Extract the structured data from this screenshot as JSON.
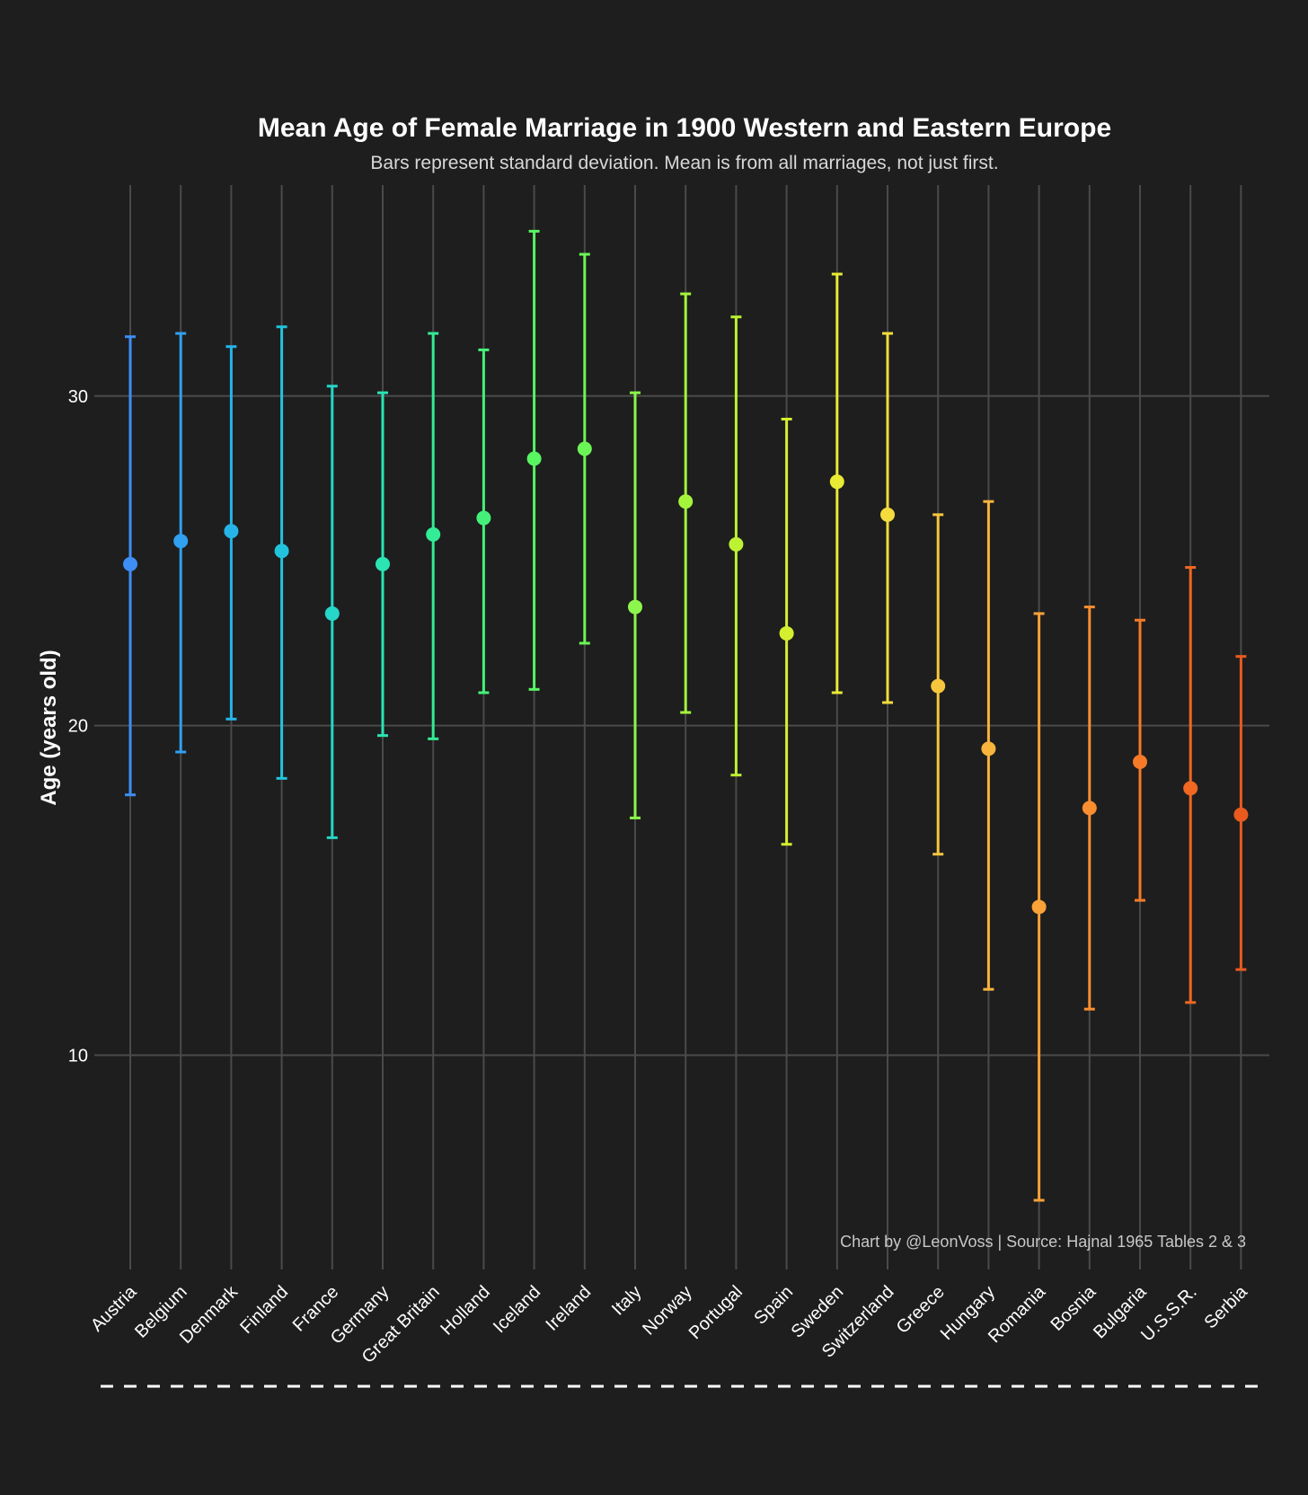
{
  "chart_data": {
    "type": "errorbar",
    "title": "Mean Age of Female Marriage in 1900 Western and Eastern Europe",
    "subtitle": "Bars represent standard deviation. Mean is from all marriages, not just first.",
    "xlabel": "",
    "ylabel": "Age (years old)",
    "ylim": [
      3.5,
      36.4
    ],
    "yticks": [
      "10",
      "20",
      "30"
    ],
    "grid": true,
    "caption": "Chart by @LeonVoss | Source: Hajnal 1965 Tables 2 & 3",
    "categories": [
      "Austria",
      "Belgium",
      "Denmark",
      "Finland",
      "France",
      "Germany",
      "Great Britain",
      "Holland",
      "Iceland",
      "Ireland",
      "Italy",
      "Norway",
      "Portugal",
      "Spain",
      "Sweden",
      "Switzerland",
      "Greece",
      "Hungary",
      "Romania",
      "Bosnia",
      "Bulgaria",
      "U.S.S.R.",
      "Serbia"
    ],
    "mean": [
      24.9,
      25.6,
      25.9,
      25.3,
      23.4,
      24.9,
      25.8,
      26.3,
      28.1,
      28.4,
      23.6,
      26.8,
      25.5,
      22.8,
      27.4,
      26.4,
      21.2,
      19.3,
      14.5,
      17.5,
      18.9,
      18.1,
      17.3
    ],
    "upper": [
      31.8,
      31.9,
      31.5,
      32.1,
      30.3,
      30.1,
      31.9,
      31.4,
      35.0,
      34.3,
      30.1,
      33.1,
      32.4,
      29.3,
      33.7,
      31.9,
      26.4,
      26.8,
      23.4,
      23.6,
      23.2,
      24.8,
      22.1
    ],
    "lower": [
      17.9,
      19.2,
      20.2,
      18.4,
      16.6,
      19.7,
      19.6,
      21.0,
      21.1,
      22.5,
      17.2,
      20.4,
      18.5,
      16.4,
      21.0,
      20.7,
      16.1,
      12.0,
      5.6,
      11.4,
      14.7,
      11.6,
      12.6
    ],
    "colors": [
      "#3d8ef5",
      "#31a0f0",
      "#26b4e8",
      "#22c3dc",
      "#26d6c8",
      "#2ae4b2",
      "#33ec96",
      "#45f07a",
      "#58f462",
      "#6cf556",
      "#8cf64c",
      "#a4f43c",
      "#bdf232",
      "#d5ef2e",
      "#e9ea34",
      "#f3dc3c",
      "#f6c63e",
      "#f8b43c",
      "#f9a238",
      "#f98e30",
      "#f67a28",
      "#f06822",
      "#e85a1e"
    ]
  }
}
